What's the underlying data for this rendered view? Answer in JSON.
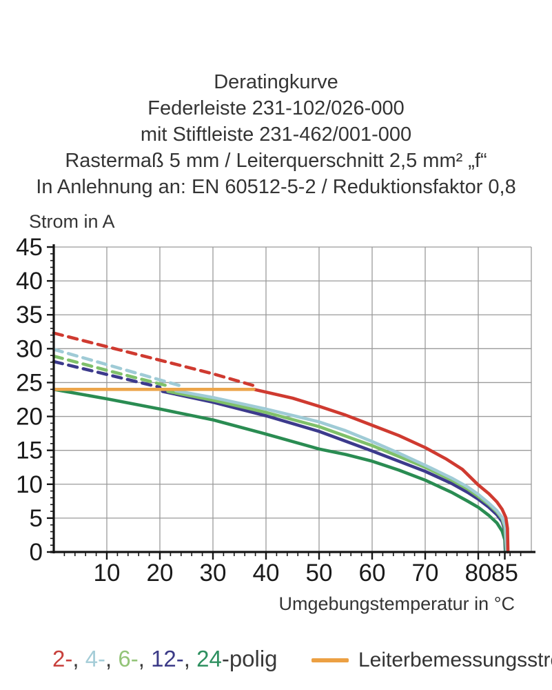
{
  "title": {
    "lines": [
      "Deratingkurve",
      "Federleiste 231-102/026-000",
      "mit Stiftleiste 231-462/001-000",
      "Rastermaß 5 mm / Leiterquerschnitt 2,5 mm² „f“",
      "In Anlehnung an: EN 60512-5-2 / Reduktionsfaktor 0,8"
    ]
  },
  "chart_data": {
    "type": "line",
    "xlabel": "Umgebungstemperatur in °C",
    "ylabel": "Strom in A",
    "xlim": [
      0,
      90
    ],
    "ylim": [
      0,
      45
    ],
    "x_tick_labels": [
      10,
      20,
      30,
      40,
      50,
      60,
      70,
      80,
      85
    ],
    "x_grid_ticks": [
      10,
      20,
      30,
      40,
      50,
      60,
      70,
      80
    ],
    "y_tick_labels": [
      0,
      5,
      10,
      15,
      20,
      25,
      30,
      35,
      40,
      45
    ],
    "x_minor_step": 2,
    "y_minor_step": 1,
    "grid": true,
    "colors": {
      "grid": "#9a9a9a",
      "axis": "#151515",
      "tick_text": "#1a1a1a"
    },
    "series": [
      {
        "name": "2-polig",
        "style": "dashed",
        "color": "#cf3a30",
        "points": [
          [
            0,
            32.3
          ],
          [
            10,
            30.3
          ],
          [
            20,
            28.3
          ],
          [
            30,
            26.3
          ],
          [
            37.5,
            24.6
          ]
        ]
      },
      {
        "name": "4-polig",
        "style": "dashed",
        "color": "#9fcbd6",
        "points": [
          [
            0,
            29.9
          ],
          [
            12,
            27.2
          ],
          [
            24,
            24.5
          ]
        ]
      },
      {
        "name": "6-polig",
        "style": "dashed",
        "color": "#7fc06a",
        "points": [
          [
            0,
            28.9
          ],
          [
            11,
            26.6
          ],
          [
            22,
            24.4
          ]
        ]
      },
      {
        "name": "12-polig",
        "style": "dashed",
        "color": "#3c3a8c",
        "points": [
          [
            0,
            28.1
          ],
          [
            10,
            26.2
          ],
          [
            20,
            24.3
          ]
        ]
      },
      {
        "name": "24-polig",
        "style": "solid",
        "color": "#2a8c52",
        "points": [
          [
            0,
            24
          ],
          [
            10,
            22.6
          ],
          [
            20,
            21.1
          ],
          [
            30,
            19.5
          ],
          [
            40,
            17.4
          ],
          [
            50,
            15.2
          ],
          [
            55,
            14.4
          ],
          [
            60,
            13.4
          ],
          [
            65,
            12.1
          ],
          [
            70,
            10.6
          ],
          [
            75,
            8.8
          ],
          [
            78,
            7.5
          ],
          [
            80,
            6.6
          ],
          [
            82,
            5.4
          ],
          [
            83.5,
            4.3
          ],
          [
            84.5,
            3.1
          ],
          [
            85,
            1.8
          ],
          [
            85.1,
            0
          ]
        ]
      },
      {
        "name": "12-polig",
        "style": "solid",
        "color": "#3c3a8c",
        "points": [
          [
            20.5,
            23.7
          ],
          [
            30,
            22.1
          ],
          [
            40,
            20.1
          ],
          [
            50,
            17.8
          ],
          [
            60,
            14.9
          ],
          [
            65,
            13.4
          ],
          [
            70,
            11.9
          ],
          [
            75,
            10.1
          ],
          [
            78,
            8.8
          ],
          [
            80,
            7.8
          ],
          [
            82,
            6.6
          ],
          [
            83.5,
            5.5
          ],
          [
            84.5,
            4.5
          ],
          [
            85,
            3.2
          ],
          [
            85.2,
            0
          ]
        ]
      },
      {
        "name": "6-polig",
        "style": "solid",
        "color": "#7fc06a",
        "points": [
          [
            21.5,
            23.7
          ],
          [
            30,
            22.4
          ],
          [
            40,
            20.6
          ],
          [
            50,
            18.5
          ],
          [
            60,
            15.7
          ],
          [
            65,
            14.1
          ],
          [
            70,
            12.5
          ],
          [
            75,
            10.6
          ],
          [
            78,
            9.3
          ],
          [
            80,
            8.2
          ],
          [
            82,
            7.0
          ],
          [
            83.5,
            5.9
          ],
          [
            84.5,
            4.9
          ],
          [
            85,
            3.6
          ],
          [
            85.3,
            0
          ]
        ]
      },
      {
        "name": "4-polig",
        "style": "solid",
        "color": "#9fcbd6",
        "points": [
          [
            23,
            23.8
          ],
          [
            30,
            22.8
          ],
          [
            40,
            21.1
          ],
          [
            50,
            19.2
          ],
          [
            55,
            17.9
          ],
          [
            60,
            16.3
          ],
          [
            65,
            14.6
          ],
          [
            70,
            12.8
          ],
          [
            75,
            10.9
          ],
          [
            78,
            9.6
          ],
          [
            80,
            8.5
          ],
          [
            82,
            7.2
          ],
          [
            83.5,
            6.1
          ],
          [
            84.5,
            5.1
          ],
          [
            85.1,
            3.8
          ],
          [
            85.4,
            0
          ]
        ]
      },
      {
        "name": "2-polig",
        "style": "solid",
        "color": "#cf3a30",
        "points": [
          [
            37.7,
            24
          ],
          [
            45,
            22.7
          ],
          [
            50,
            21.5
          ],
          [
            55,
            20.2
          ],
          [
            60,
            18.7
          ],
          [
            65,
            17.2
          ],
          [
            70,
            15.4
          ],
          [
            74,
            13.7
          ],
          [
            77,
            12.2
          ],
          [
            80,
            9.9
          ],
          [
            82,
            8.6
          ],
          [
            83.5,
            7.4
          ],
          [
            84.5,
            6.3
          ],
          [
            85.2,
            5.1
          ],
          [
            85.5,
            3.5
          ],
          [
            85.6,
            0
          ]
        ]
      },
      {
        "name": "Leiterbemessungsstrom",
        "style": "solid",
        "color": "#eca54a",
        "points": [
          [
            0,
            24
          ],
          [
            37.7,
            24
          ]
        ]
      }
    ]
  },
  "legend_poles": {
    "segments": [
      {
        "text": "2-",
        "color": "#c8403c"
      },
      {
        "text": ", ",
        "color": "#3a3a3a"
      },
      {
        "text": "4-",
        "color": "#a5cdd8"
      },
      {
        "text": ", ",
        "color": "#3a3a3a"
      },
      {
        "text": "6-",
        "color": "#93c478"
      },
      {
        "text": ", ",
        "color": "#3a3a3a"
      },
      {
        "text": "12-",
        "color": "#3b3a87"
      },
      {
        "text": ", ",
        "color": "#3a3a3a"
      },
      {
        "text": "24",
        "color": "#2e9060"
      },
      {
        "text": "-polig",
        "color": "#3a3a3a"
      }
    ]
  },
  "legend_rated": {
    "label": "Leiterbemessungsstrom",
    "color": "#eca043"
  }
}
